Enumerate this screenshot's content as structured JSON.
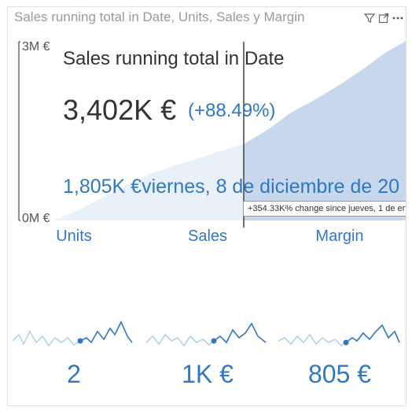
{
  "header": {
    "title": "Sales running total in Date, Units, Sales y Margin",
    "icons": [
      "filter-icon",
      "focus-mode-icon",
      "more-options-icon"
    ]
  },
  "main_card": {
    "y_axis_max_label": "3M €",
    "y_axis_min_label": "0M €",
    "kpi_name": "Sales running total in Date",
    "kpi_value": "3,402K €",
    "kpi_change": "(+88.49%)",
    "hover_value": "1,805K €",
    "hover_date": "viernes, 8 de diciembre de 20",
    "tooltip": "+354.33K% change since jueves, 1 de en",
    "colors": {
      "area": "#c7d8ec",
      "area_light": "#eaf0f7",
      "accent": "#2f78c4"
    }
  },
  "tiles": [
    {
      "label": "Units",
      "value": "2"
    },
    {
      "label": "Sales",
      "value": "1K €"
    },
    {
      "label": "Margin",
      "value": "805 €"
    }
  ]
}
